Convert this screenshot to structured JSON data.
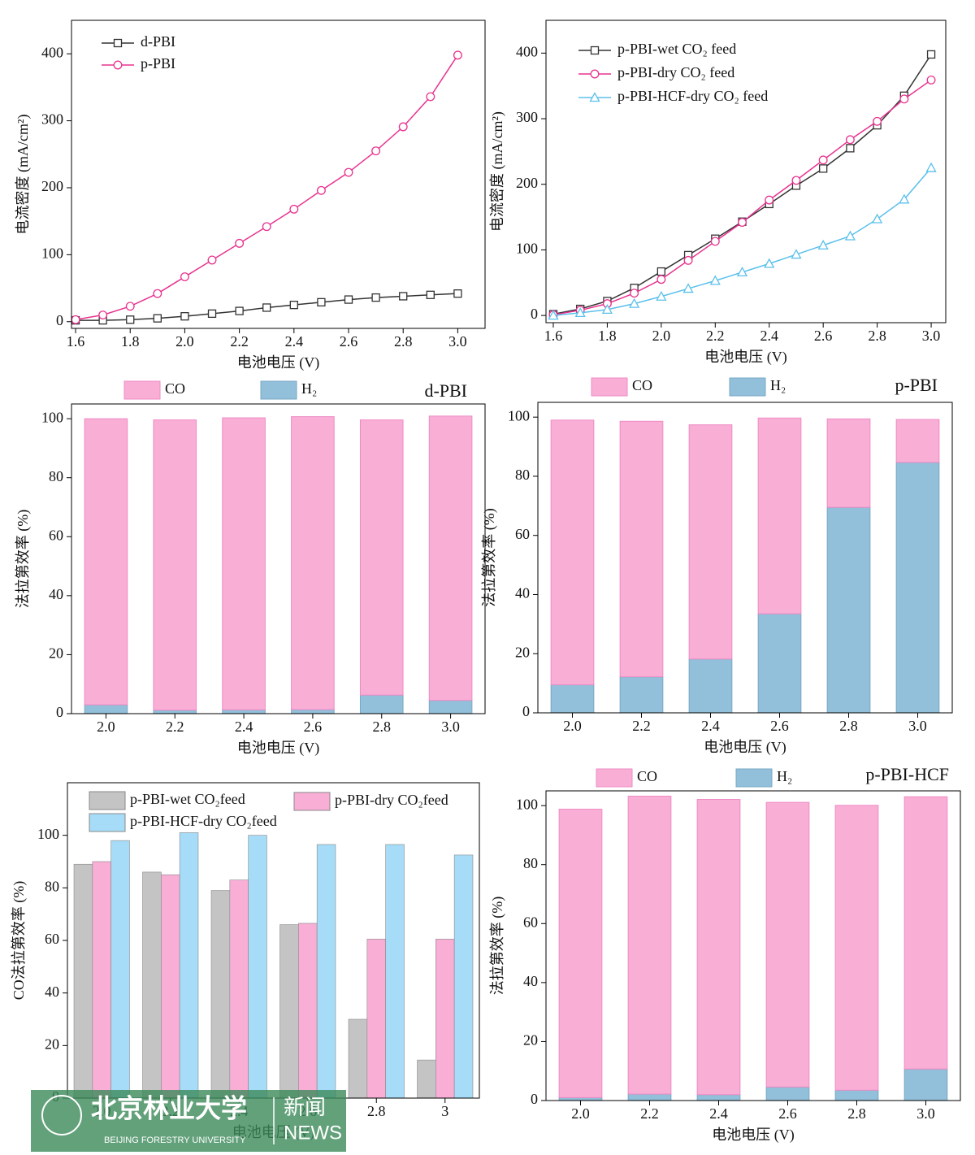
{
  "chart_data": [
    {
      "type": "line",
      "x_label": "电池电压 (V)",
      "y_label": "电流密度 (mA/cm²)",
      "x": [
        1.6,
        1.7,
        1.8,
        1.9,
        2.0,
        2.1,
        2.2,
        2.3,
        2.4,
        2.5,
        2.6,
        2.7,
        2.8,
        2.9,
        3.0
      ],
      "xlim": [
        1.585,
        3.1
      ],
      "ylim": [
        -10,
        450
      ],
      "xticks": [
        1.6,
        1.8,
        {
          "value": 2,
          "label": "2.0"
        },
        2.2,
        2.4,
        2.6,
        2.8,
        {
          "value": 3,
          "label": "3.0"
        }
      ],
      "yticks": [
        0,
        100,
        200,
        300,
        400
      ],
      "series": [
        {
          "name": "d-PBI",
          "color": "#333333",
          "marker": "square",
          "values": [
            2,
            2,
            3,
            5,
            8,
            12,
            16,
            21,
            25,
            29,
            33,
            36,
            38,
            40,
            42
          ]
        },
        {
          "name": "p-PBI",
          "color": "#e8338f",
          "marker": "circle",
          "values": [
            3,
            10,
            23,
            42,
            67,
            92,
            117,
            142,
            168,
            196,
            223,
            255,
            291,
            336,
            398
          ]
        }
      ]
    },
    {
      "type": "line",
      "x_label": "电池电压 (V)",
      "y_label": "电流密度 (mA/cm²)",
      "x": [
        1.6,
        1.7,
        1.8,
        1.9,
        2.0,
        2.1,
        2.2,
        2.3,
        2.4,
        2.5,
        2.6,
        2.7,
        2.8,
        2.9,
        3.0
      ],
      "xlim": [
        1.573,
        3.054
      ],
      "ylim": [
        -11,
        450
      ],
      "xticks": [
        1.6,
        1.8,
        {
          "value": 2,
          "label": "2.0"
        },
        2.2,
        2.4,
        2.6,
        2.8,
        {
          "value": 3,
          "label": "3.0"
        }
      ],
      "yticks": [
        0,
        100,
        200,
        300,
        400
      ],
      "series": [
        {
          "name": "p-PBI-wet CO₂ feed",
          "color": "#333333",
          "marker": "square",
          "values": [
            2,
            10,
            22,
            42,
            67,
            92,
            117,
            143,
            170,
            198,
            224,
            255,
            290,
            335,
            398
          ]
        },
        {
          "name": "p-PBI-dry CO₂ feed",
          "color": "#e8338f",
          "marker": "circle",
          "values": [
            1,
            8,
            18,
            34,
            55,
            84,
            113,
            142,
            176,
            206,
            237,
            268,
            296,
            330,
            359
          ]
        },
        {
          "name": "p-PBI-HCF-dry CO₂ feed",
          "color": "#5bc0eb",
          "marker": "triangle",
          "values": [
            0,
            4,
            9,
            18,
            29,
            41,
            53,
            66,
            79,
            93,
            107,
            121,
            147,
            177,
            225
          ]
        }
      ]
    },
    {
      "type": "stacked_bar",
      "label": "d-PBI",
      "x_label": "电池电压 (V)",
      "y_label": "法拉第效率 (%)",
      "categories": [
        "2.0",
        "2.2",
        "2.4",
        "2.6",
        "2.8",
        "3.0"
      ],
      "ylim": [
        0,
        105
      ],
      "yticks": [
        0,
        20,
        40,
        60,
        80,
        100
      ],
      "series": [
        {
          "name": "CO",
          "color": "#f9aed6",
          "values": [
            97,
            98.4,
            99,
            99.3,
            93.3,
            96.4
          ]
        },
        {
          "name": "H₂",
          "color": "#92bfd9",
          "values": [
            3,
            1.2,
            1.3,
            1.4,
            6.3,
            4.5
          ]
        }
      ]
    },
    {
      "type": "stacked_bar",
      "label": "p-PBI",
      "x_label": "电池电压 (V)",
      "y_label": "法拉第效率 (%)",
      "categories": [
        "2.0",
        "2.2",
        "2.4",
        "2.6",
        "2.8",
        "3.0"
      ],
      "ylim": [
        0,
        105
      ],
      "yticks": [
        0,
        20,
        40,
        60,
        80,
        100
      ],
      "series": [
        {
          "name": "CO",
          "color": "#f9aed6",
          "values": [
            89.5,
            86.4,
            79.2,
            66.2,
            29.9,
            14.5
          ]
        },
        {
          "name": "H₂",
          "color": "#92bfd9",
          "values": [
            9.5,
            12.2,
            18.2,
            33.5,
            69.5,
            84.7
          ]
        }
      ]
    },
    {
      "type": "bar",
      "x_label": "电池电压 (V)",
      "y_label": "CO法拉第效率 (%)",
      "categories": [
        "2.0",
        "2.2",
        "2.4",
        "2.6",
        "2.8",
        "3"
      ],
      "ylim": [
        0,
        120
      ],
      "yticks": [
        0,
        20,
        40,
        60,
        80,
        100
      ],
      "series": [
        {
          "name": "p-PBI-wet CO₂feed",
          "color": "#c4c4c4",
          "values": [
            89,
            86,
            79,
            66,
            30,
            14.5
          ]
        },
        {
          "name": "p-PBI-dry CO₂feed",
          "color": "#f9aed6",
          "values": [
            90,
            85,
            83,
            66.5,
            60.5,
            60.5
          ]
        },
        {
          "name": "p-PBI-HCF-dry CO₂feed",
          "color": "#a6dcf7",
          "values": [
            98,
            101,
            100,
            96.5,
            96.5,
            92.5
          ]
        }
      ]
    },
    {
      "type": "stacked_bar",
      "label": "p-PBI-HCF",
      "x_label": "电池电压 (V)",
      "y_label": "法拉第效率 (%)",
      "categories": [
        "2.0",
        "2.2",
        "2.4",
        "2.6",
        "2.8",
        "3.0"
      ],
      "ylim": [
        0,
        105
      ],
      "yticks": [
        0,
        20,
        40,
        60,
        80,
        100
      ],
      "series": [
        {
          "name": "CO",
          "color": "#f9aed6",
          "values": [
            97.8,
            101,
            100.1,
            96.5,
            96.6,
            92.3
          ]
        },
        {
          "name": "H₂",
          "color": "#92bfd9",
          "values": [
            1,
            2.2,
            2,
            4.6,
            3.5,
            10.7
          ]
        }
      ]
    }
  ],
  "watermark": {
    "name": "北京林业大学",
    "section": "新闻",
    "section_en": "NEWS",
    "english": "BEIJING FORESTRY UNIVERSITY"
  }
}
